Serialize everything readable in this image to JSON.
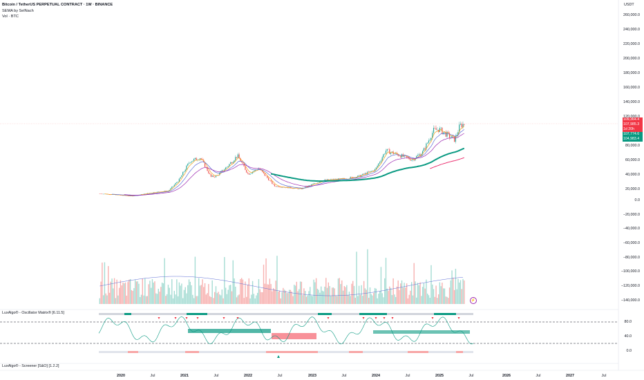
{
  "header": {
    "symbol_line": "Bitcoin / TetherUS PERPETUAL CONTRACT · 1W · BINANCE",
    "indicator_1": "SEMA by SelNach",
    "indicator_2": "Vol · BTC"
  },
  "price_axis": {
    "currency": "USDT",
    "ticks": [
      "260,000.0",
      "240,000.0",
      "220,000.0",
      "200,000.0",
      "180,000.0",
      "160,000.0",
      "140,000.0",
      "120,000.0",
      "80,000.0",
      "60,000.0",
      "40,000.0",
      "20,000.0",
      "0.0",
      "−20,000.0",
      "−40,000.0",
      "−60,000.0",
      "−80,000.0",
      "−100,000.0",
      "−120,000.0",
      "−140,000.0"
    ],
    "badges": [
      {
        "text": "109,364.4",
        "color": "#f23645"
      },
      {
        "text": "107,985.3",
        "color": "#f23645"
      },
      {
        "text": "1d 20h",
        "color": "#f23645"
      },
      {
        "text": "107,774.6",
        "color": "#089981"
      },
      {
        "text": "104,983.4",
        "color": "#089981"
      }
    ]
  },
  "oscillator_pane": {
    "label": "LuxAlgo® - Oscillator Matrix® [6.11.5]",
    "ticks": [
      "80.0",
      "40.0",
      "0.0"
    ]
  },
  "screener_pane": {
    "label": "LuxAlgo® - Screener [S&O] [1.2.2]"
  },
  "time_axis": {
    "ticks": [
      {
        "label": "2020",
        "year": true
      },
      {
        "label": "Jul",
        "year": false
      },
      {
        "label": "2021",
        "year": true
      },
      {
        "label": "Jul",
        "year": false
      },
      {
        "label": "2022",
        "year": true
      },
      {
        "label": "Jul",
        "year": false
      },
      {
        "label": "2023",
        "year": true
      },
      {
        "label": "Jul",
        "year": false
      },
      {
        "label": "2024",
        "year": true
      },
      {
        "label": "Jul",
        "year": false
      },
      {
        "label": "2025",
        "year": true
      },
      {
        "label": "Jul",
        "year": false
      },
      {
        "label": "2026",
        "year": true
      },
      {
        "label": "Jul",
        "year": false
      },
      {
        "label": "2027",
        "year": true
      },
      {
        "label": "Jul",
        "year": false
      }
    ]
  },
  "colors": {
    "up": "#26a69a",
    "down": "#ef5350",
    "sema_orange": "#f7a21b",
    "sema_blue": "#5b6bd5",
    "sema_purple": "#9c27b0",
    "sema_green": "#089981",
    "sema_red": "#e91e63"
  },
  "chart_data": {
    "type": "candlestick",
    "timeframe": "1W",
    "x_range": [
      "2019-09",
      "2027-12"
    ],
    "ylim": [
      -140000,
      260000
    ],
    "price_anchors": [
      {
        "date": "2019-09",
        "close": 9500
      },
      {
        "date": "2020-03",
        "close": 6000
      },
      {
        "date": "2020-07",
        "close": 11000
      },
      {
        "date": "2020-10",
        "close": 13500
      },
      {
        "date": "2020-12",
        "close": 29000
      },
      {
        "date": "2021-02",
        "close": 55000
      },
      {
        "date": "2021-04",
        "close": 60000
      },
      {
        "date": "2021-06",
        "close": 33000
      },
      {
        "date": "2021-07",
        "close": 34000
      },
      {
        "date": "2021-09",
        "close": 47000
      },
      {
        "date": "2021-11",
        "close": 63000
      },
      {
        "date": "2022-01",
        "close": 37000
      },
      {
        "date": "2022-03",
        "close": 45000
      },
      {
        "date": "2022-06",
        "close": 20000
      },
      {
        "date": "2022-11",
        "close": 16000
      },
      {
        "date": "2023-03",
        "close": 28000
      },
      {
        "date": "2023-07",
        "close": 30000
      },
      {
        "date": "2023-10",
        "close": 34000
      },
      {
        "date": "2024-01",
        "close": 43000
      },
      {
        "date": "2024-03",
        "close": 70000
      },
      {
        "date": "2024-08",
        "close": 57000
      },
      {
        "date": "2024-10",
        "close": 68000
      },
      {
        "date": "2024-12",
        "close": 98000
      },
      {
        "date": "2025-01",
        "close": 100000
      },
      {
        "date": "2025-04",
        "close": 85000
      },
      {
        "date": "2025-05",
        "close": 105000
      },
      {
        "date": "2025-06",
        "close": 107775
      }
    ],
    "sema_lines": [
      {
        "color": "#f7a21b",
        "points": [
          {
            "date": "2024-06",
            "v": 66000
          },
          {
            "date": "2025-06",
            "v": 101000
          }
        ]
      },
      {
        "color": "#5b6bd5",
        "points": [
          {
            "date": "2024-06",
            "v": 60000
          },
          {
            "date": "2025-06",
            "v": 97000
          }
        ]
      },
      {
        "color": "#9c27b0",
        "points": [
          {
            "date": "2024-06",
            "v": 52000
          },
          {
            "date": "2025-06",
            "v": 86000
          }
        ]
      },
      {
        "color": "#089981",
        "points": [
          {
            "date": "2022-06",
            "v": 28000
          },
          {
            "date": "2025-06",
            "v": 62000
          }
        ]
      },
      {
        "color": "#e91e63",
        "points": [
          {
            "date": "2024-12",
            "v": 33000
          },
          {
            "date": "2025-06",
            "v": 49000
          }
        ]
      }
    ]
  }
}
